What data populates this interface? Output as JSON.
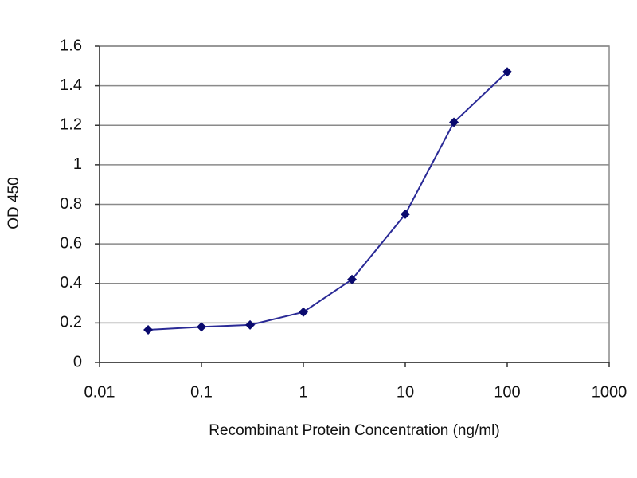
{
  "chart_data": {
    "type": "line",
    "x_label": "Recombinant Protein Concentration (ng/ml)",
    "y_label": "OD 450",
    "x": [
      0.03,
      0.1,
      0.3,
      1,
      3,
      10,
      30,
      100
    ],
    "values": [
      0.165,
      0.18,
      0.19,
      0.255,
      0.42,
      0.75,
      1.215,
      1.47
    ],
    "color": "#2a2a96",
    "marker_color": "#0a0a6e",
    "xscale": "log",
    "xlim": [
      0.01,
      1000
    ],
    "xticks": [
      0.01,
      0.1,
      1,
      10,
      100,
      1000
    ],
    "ylim": [
      0,
      1.6
    ],
    "yticks": [
      0,
      0.2,
      0.4,
      0.6,
      0.8,
      1,
      1.2,
      1.4,
      1.6
    ],
    "grid": true
  }
}
